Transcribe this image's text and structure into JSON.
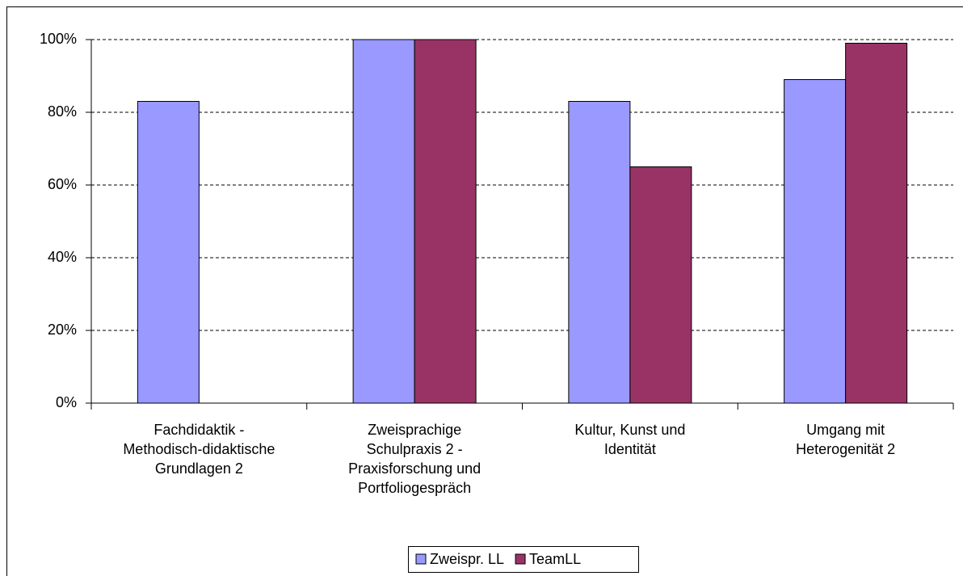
{
  "chart_data": {
    "type": "bar",
    "categories": [
      "Fachdidaktik -\nMethodisch-didaktische\nGrundlagen 2",
      "Zweisprachige\nSchulpraxis 2 -\nPraxisforschung und\nPortfoliogespräch",
      "Kultur, Kunst und\nIdentität",
      "Umgang mit\nHeterogenität 2"
    ],
    "series": [
      {
        "name": "Zweispr. LL",
        "color": "#9999ff",
        "values": [
          83,
          100,
          83,
          89
        ]
      },
      {
        "name": "TeamLL",
        "color": "#993366",
        "values": [
          null,
          100,
          65,
          99
        ]
      }
    ],
    "ylim": [
      0,
      100
    ],
    "yticks": [
      {
        "value": 0,
        "label": "0%"
      },
      {
        "value": 20,
        "label": "20%"
      },
      {
        "value": 40,
        "label": "40%"
      },
      {
        "value": 60,
        "label": "60%"
      },
      {
        "value": 80,
        "label": "80%"
      },
      {
        "value": 100,
        "label": "100%"
      }
    ],
    "grid": true,
    "legend": "bottom"
  }
}
